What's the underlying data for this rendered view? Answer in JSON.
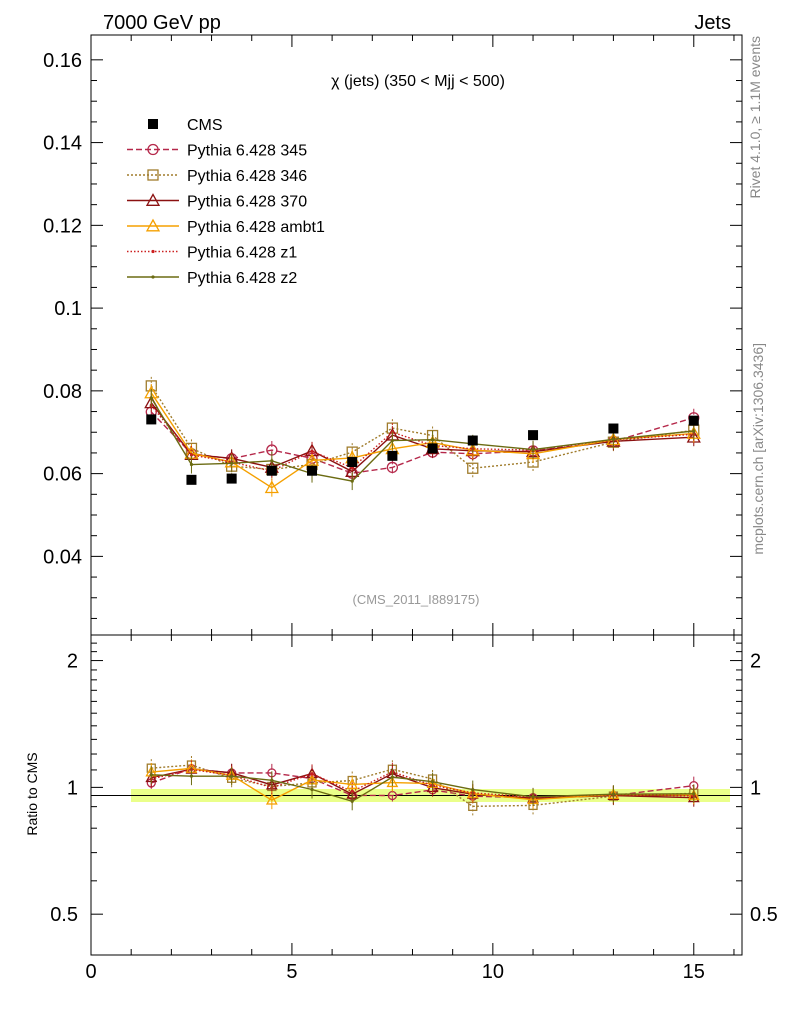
{
  "header": {
    "left": "7000 GeV pp",
    "right": "Jets"
  },
  "side_labels": {
    "rivet": "Rivet 4.1.0, ≥ 1.1M events",
    "mcplots": "mcplots.cern.ch [arXiv:1306.3436]"
  },
  "chart_data": {
    "type": "line",
    "title": "χ (jets) (350 < Mjj <  500)",
    "analysis": "(CMS_2011_I889175)",
    "xlabel": "",
    "ylabel_ratio": "Ratio to CMS",
    "xlim": [
      0,
      16.2
    ],
    "ylim": [
      0.021,
      0.166
    ],
    "ratio_ylim": [
      0.4,
      2.3
    ],
    "x_ticks": [
      0,
      5,
      10,
      15
    ],
    "y_ticks": [
      0.04,
      0.06,
      0.08,
      0.1,
      0.12,
      0.14,
      0.16
    ],
    "y_tick_labels": [
      "0.04",
      "0.06",
      "0.08",
      "0.1",
      "0.12",
      "0.14",
      "0.16"
    ],
    "ratio_ticks": [
      0.5,
      1,
      2
    ],
    "ratio_tick_labels": [
      "0.5",
      "1",
      "2"
    ],
    "x": [
      1.5,
      2.5,
      3.5,
      4.5,
      5.5,
      6.5,
      7.5,
      8.5,
      9.5,
      11,
      13,
      15
    ],
    "cms": {
      "name": "CMS",
      "values": [
        0.0731,
        0.0585,
        0.0588,
        0.0607,
        0.0607,
        0.0628,
        0.0643,
        0.0661,
        0.068,
        0.0693,
        0.0709,
        0.0728
      ]
    },
    "series": [
      {
        "name": "Pythia 6.428 345",
        "color": "#b5284a",
        "dash": "6,3",
        "marker": "circle",
        "values": [
          0.0749,
          0.0648,
          0.0636,
          0.0657,
          0.0637,
          0.0601,
          0.0615,
          0.0652,
          0.0648,
          0.0655,
          0.0678,
          0.0735
        ]
      },
      {
        "name": "Pythia 6.428 346",
        "color": "#a07c2c",
        "dash": "2,2",
        "marker": "square",
        "values": [
          0.0812,
          0.0661,
          0.0618,
          0.061,
          0.0622,
          0.0652,
          0.071,
          0.0692,
          0.0613,
          0.0628,
          0.0676,
          0.0705
        ]
      },
      {
        "name": "Pythia 6.428 370",
        "color": "#8b1111",
        "dash": "",
        "marker": "triangle",
        "values": [
          0.0771,
          0.0646,
          0.0637,
          0.0615,
          0.0655,
          0.0605,
          0.0693,
          0.066,
          0.0655,
          0.0653,
          0.0678,
          0.0688
        ]
      },
      {
        "name": "Pythia 6.428 ambt1",
        "color": "#f5a000",
        "dash": "",
        "marker": "triangle",
        "values": [
          0.0795,
          0.0649,
          0.0628,
          0.0566,
          0.0632,
          0.0638,
          0.066,
          0.0675,
          0.0657,
          0.0648,
          0.0682,
          0.0697
        ]
      },
      {
        "name": "Pythia 6.428 z1",
        "color": "#cc2020",
        "dash": "1.5,2",
        "marker": "dot",
        "values": [
          0.0765,
          0.0645,
          0.0628,
          0.0606,
          0.0654,
          0.0614,
          0.07,
          0.0668,
          0.066,
          0.0657,
          0.0682,
          0.0695
        ]
      },
      {
        "name": "Pythia 6.428 z2",
        "color": "#6b6b12",
        "dash": "",
        "marker": "dot",
        "values": [
          0.0783,
          0.0622,
          0.0625,
          0.0631,
          0.06,
          0.0582,
          0.068,
          0.0682,
          0.0672,
          0.0658,
          0.0683,
          0.0703
        ]
      }
    ]
  }
}
